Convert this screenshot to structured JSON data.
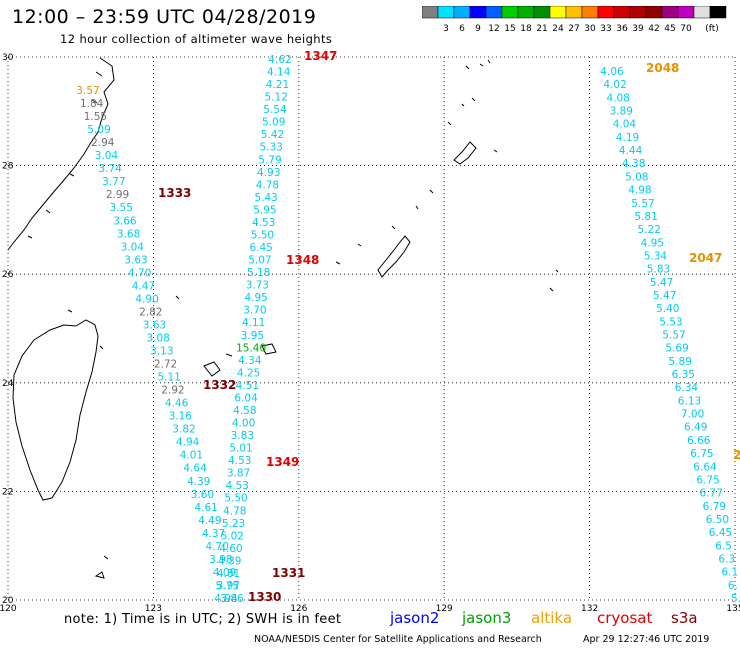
{
  "title": "12:00 – 23:59 UTC 04/28/2019",
  "subtitle": "12 hour collection of altimeter wave heights",
  "colorbar": {
    "colors": [
      "#808080",
      "#00e0ff",
      "#00b0ff",
      "#0000ff",
      "#0060ff",
      "#00d000",
      "#00b000",
      "#009000",
      "#ffff00",
      "#ffc000",
      "#ff8000",
      "#ff0000",
      "#d00000",
      "#b00000",
      "#900000",
      "#a00080",
      "#c000c0",
      "#e0e0e0",
      "#000000"
    ],
    "labels": [
      "3",
      "6",
      "9",
      "12",
      "15",
      "18",
      "21",
      "24",
      "27",
      "30",
      "33",
      "36",
      "39",
      "42",
      "45",
      "70"
    ],
    "unit": "(ft)"
  },
  "axes": {
    "lon_ticks": [
      "120",
      "123",
      "126",
      "129",
      "132",
      "135"
    ],
    "lat_ticks": [
      "30",
      "28",
      "26",
      "24",
      "22",
      "20"
    ]
  },
  "palette": {
    "cyan": "#00ccee",
    "gray": "#707070",
    "orange": "#e89000",
    "red": "#e00000",
    "darkred": "#800000",
    "green": "#00aa00"
  },
  "tracks": [
    {
      "id": "trackA",
      "values": [
        [
          "3.57",
          "orange"
        ],
        [
          "1.84",
          "gray"
        ],
        [
          "1.55",
          "gray"
        ],
        [
          "5.09",
          "cyan"
        ],
        [
          "2.94",
          "gray"
        ],
        [
          "3.04",
          "cyan"
        ],
        [
          "3.74",
          "cyan"
        ],
        [
          "3.77",
          "cyan"
        ],
        [
          "2.99",
          "gray"
        ],
        [
          "3.55",
          "cyan"
        ],
        [
          "3.66",
          "cyan"
        ],
        [
          "3.68",
          "cyan"
        ],
        [
          "3.04",
          "cyan"
        ],
        [
          "3.63",
          "cyan"
        ],
        [
          "4.70",
          "cyan"
        ],
        [
          "4.47",
          "cyan"
        ],
        [
          "4.90",
          "cyan"
        ],
        [
          "2.82",
          "gray"
        ],
        [
          "3.63",
          "cyan"
        ],
        [
          "3.08",
          "cyan"
        ],
        [
          "3.13",
          "cyan"
        ],
        [
          "2.72",
          "gray"
        ],
        [
          "5.11",
          "cyan"
        ],
        [
          "2.92",
          "gray"
        ],
        [
          "4.46",
          "cyan"
        ],
        [
          "3.16",
          "cyan"
        ],
        [
          "3.82",
          "cyan"
        ],
        [
          "4.94",
          "cyan"
        ],
        [
          "4.01",
          "cyan"
        ],
        [
          "4.64",
          "cyan"
        ],
        [
          "4.39",
          "cyan"
        ],
        [
          "3.60",
          "cyan"
        ],
        [
          "4.61",
          "cyan"
        ],
        [
          "4.49",
          "cyan"
        ],
        [
          "4.37",
          "cyan"
        ],
        [
          "4.70",
          "cyan"
        ],
        [
          "3.98",
          "cyan"
        ],
        [
          "4.09",
          "cyan"
        ],
        [
          "3.97",
          "cyan"
        ],
        [
          "3.86",
          "cyan"
        ]
      ]
    },
    {
      "id": "trackB",
      "values": [
        [
          "4.62",
          "cyan"
        ],
        [
          "4.14",
          "cyan"
        ],
        [
          "4.21",
          "cyan"
        ],
        [
          "5.12",
          "cyan"
        ],
        [
          "5.54",
          "cyan"
        ],
        [
          "5.09",
          "cyan"
        ],
        [
          "5.42",
          "cyan"
        ],
        [
          "5.33",
          "cyan"
        ],
        [
          "5.79",
          "cyan"
        ],
        [
          "4.93",
          "cyan"
        ],
        [
          "4.78",
          "cyan"
        ],
        [
          "5.43",
          "cyan"
        ],
        [
          "5.95",
          "cyan"
        ],
        [
          "4.53",
          "cyan"
        ],
        [
          "5.50",
          "cyan"
        ],
        [
          "6.45",
          "cyan"
        ],
        [
          "5.07",
          "cyan"
        ],
        [
          "5.18",
          "cyan"
        ],
        [
          "3.73",
          "cyan"
        ],
        [
          "4.95",
          "cyan"
        ],
        [
          "3.70",
          "cyan"
        ],
        [
          "4.11",
          "cyan"
        ],
        [
          "3.95",
          "cyan"
        ],
        [
          "15.40",
          "green"
        ],
        [
          "4.34",
          "cyan"
        ],
        [
          "4.25",
          "cyan"
        ],
        [
          "4.51",
          "cyan"
        ],
        [
          "6.04",
          "cyan"
        ],
        [
          "4.58",
          "cyan"
        ],
        [
          "4.00",
          "cyan"
        ],
        [
          "3.83",
          "cyan"
        ],
        [
          "5.01",
          "cyan"
        ],
        [
          "4.53",
          "cyan"
        ],
        [
          "3.87",
          "cyan"
        ],
        [
          "4.53",
          "cyan"
        ],
        [
          "5.50",
          "cyan"
        ],
        [
          "4.78",
          "cyan"
        ],
        [
          "5.23",
          "cyan"
        ],
        [
          "5.02",
          "cyan"
        ],
        [
          "4.60",
          "cyan"
        ],
        [
          "4.39",
          "cyan"
        ],
        [
          "4.81",
          "cyan"
        ],
        [
          "5.75",
          "cyan"
        ],
        [
          "4.94",
          "cyan"
        ]
      ]
    },
    {
      "id": "trackC",
      "values": [
        [
          "4.06",
          "cyan"
        ],
        [
          "4.02",
          "cyan"
        ],
        [
          "4.08",
          "cyan"
        ],
        [
          "3.89",
          "cyan"
        ],
        [
          "4.04",
          "cyan"
        ],
        [
          "4.19",
          "cyan"
        ],
        [
          "4.44",
          "cyan"
        ],
        [
          "4.38",
          "cyan"
        ],
        [
          "5.08",
          "cyan"
        ],
        [
          "4.98",
          "cyan"
        ],
        [
          "5.57",
          "cyan"
        ],
        [
          "5.81",
          "cyan"
        ],
        [
          "5.22",
          "cyan"
        ],
        [
          "4.95",
          "cyan"
        ],
        [
          "5.34",
          "cyan"
        ],
        [
          "5.83",
          "cyan"
        ],
        [
          "5.47",
          "cyan"
        ],
        [
          "5.47",
          "cyan"
        ],
        [
          "5.40",
          "cyan"
        ],
        [
          "5.53",
          "cyan"
        ],
        [
          "5.57",
          "cyan"
        ],
        [
          "5.69",
          "cyan"
        ],
        [
          "5.89",
          "cyan"
        ],
        [
          "6.35",
          "cyan"
        ],
        [
          "6.34",
          "cyan"
        ],
        [
          "6.13",
          "cyan"
        ],
        [
          "7.00",
          "cyan"
        ],
        [
          "6.49",
          "cyan"
        ],
        [
          "6.66",
          "cyan"
        ],
        [
          "6.75",
          "cyan"
        ],
        [
          "6.64",
          "cyan"
        ],
        [
          "6.75",
          "cyan"
        ],
        [
          "6.77",
          "cyan"
        ],
        [
          "6.79",
          "cyan"
        ],
        [
          "6.50",
          "cyan"
        ],
        [
          "6.45",
          "cyan"
        ],
        [
          "6.5",
          "cyan"
        ],
        [
          "6.3",
          "cyan"
        ],
        [
          "6.1",
          "cyan"
        ],
        [
          "6.",
          "cyan"
        ],
        [
          "5.",
          "cyan"
        ]
      ]
    }
  ],
  "pass_labels": [
    {
      "text": "1347",
      "color": "red"
    },
    {
      "text": "1333",
      "color": "darkred"
    },
    {
      "text": "1348",
      "color": "red"
    },
    {
      "text": "1332",
      "color": "darkred"
    },
    {
      "text": "1349",
      "color": "red"
    },
    {
      "text": "1331",
      "color": "darkred"
    },
    {
      "text": "1330",
      "color": "darkred"
    },
    {
      "text": "2048",
      "color": "orange"
    },
    {
      "text": "2047",
      "color": "orange"
    },
    {
      "text": "2",
      "color": "orange"
    }
  ],
  "note": "note: 1) Time is in UTC; 2) SWH is in feet",
  "satellites": [
    {
      "name": "jason2",
      "color": "#0000ff"
    },
    {
      "name": "jason3",
      "color": "#00a000"
    },
    {
      "name": "altika",
      "color": "#f0a000"
    },
    {
      "name": "cryosat",
      "color": "#e00000"
    },
    {
      "name": "s3a",
      "color": "#800000"
    }
  ],
  "credit": "NOAA/NESDIS Center for Satellite Applications and Research",
  "timestamp": "Apr 29 12:27:46 UTC 2019"
}
